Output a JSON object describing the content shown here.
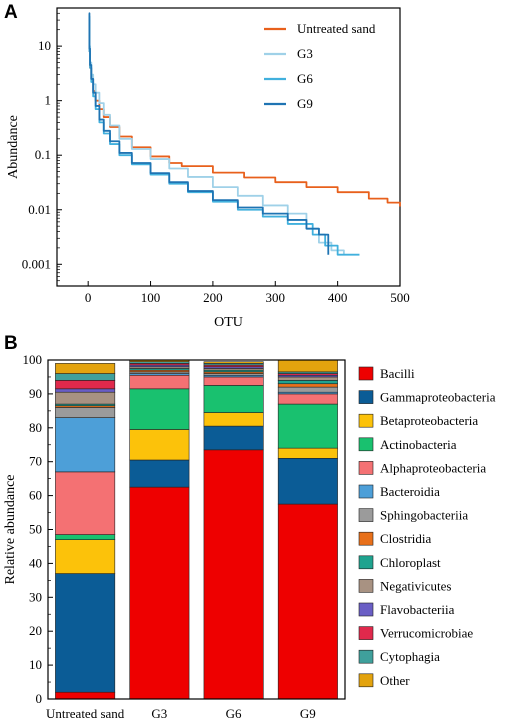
{
  "chart_data": [
    {
      "panel": "A",
      "type": "line",
      "xlabel": "OTU",
      "ylabel": "Abundance",
      "xlim": [
        -50,
        500
      ],
      "ylim": [
        0.0004,
        50
      ],
      "yscale": "log",
      "xticks": [
        0,
        100,
        200,
        300,
        400,
        500
      ],
      "yticks": [
        0.001,
        0.01,
        0.1,
        1,
        10
      ],
      "ytick_labels": [
        "0.001",
        "0.01",
        "0.1",
        "1",
        "10"
      ],
      "legend_position": "top-right",
      "series": [
        {
          "name": "Untreated sand",
          "color": "#e8601c",
          "x": [
            1,
            2,
            3,
            5,
            8,
            12,
            18,
            25,
            35,
            50,
            70,
            100,
            130,
            150,
            200,
            250,
            300,
            350,
            400,
            450,
            480,
            500
          ],
          "y": [
            30,
            8,
            4,
            2.5,
            1.5,
            1.0,
            0.7,
            0.5,
            0.33,
            0.22,
            0.14,
            0.095,
            0.072,
            0.063,
            0.048,
            0.039,
            0.032,
            0.026,
            0.021,
            0.016,
            0.0135,
            0.0115
          ]
        },
        {
          "name": "G3",
          "color": "#9fd1e8",
          "x": [
            1,
            2,
            3,
            5,
            8,
            12,
            18,
            25,
            35,
            50,
            70,
            100,
            130,
            160,
            200,
            240,
            280,
            320,
            350,
            370,
            390,
            410
          ],
          "y": [
            30,
            10,
            5,
            3,
            2,
            1.4,
            0.9,
            0.55,
            0.35,
            0.2,
            0.13,
            0.085,
            0.057,
            0.04,
            0.026,
            0.018,
            0.012,
            0.0085,
            0.0045,
            0.0025,
            0.0018,
            0.0015
          ]
        },
        {
          "name": "G6",
          "color": "#41b0dd",
          "x": [
            1,
            2,
            3,
            5,
            8,
            12,
            18,
            25,
            35,
            50,
            70,
            100,
            130,
            160,
            200,
            240,
            280,
            320,
            360,
            380,
            400,
            435
          ],
          "y": [
            35,
            8,
            4,
            2.2,
            1.2,
            0.7,
            0.4,
            0.25,
            0.16,
            0.1,
            0.068,
            0.044,
            0.03,
            0.021,
            0.014,
            0.01,
            0.0075,
            0.0055,
            0.0035,
            0.0022,
            0.0015,
            0.0015
          ]
        },
        {
          "name": "G9",
          "color": "#1f74b3",
          "x": [
            1,
            2,
            3,
            5,
            8,
            12,
            18,
            25,
            35,
            50,
            70,
            100,
            130,
            160,
            200,
            240,
            280,
            320,
            350,
            370,
            385
          ],
          "y": [
            40,
            9,
            4.5,
            2.5,
            1.4,
            0.8,
            0.45,
            0.28,
            0.18,
            0.11,
            0.072,
            0.047,
            0.032,
            0.022,
            0.015,
            0.011,
            0.0085,
            0.0065,
            0.0045,
            0.0035,
            0.0015
          ]
        }
      ]
    },
    {
      "panel": "B",
      "type": "bar",
      "stacked": true,
      "ylabel": "Relative abundance",
      "ylim": [
        0,
        100
      ],
      "yticks": [
        0,
        10,
        20,
        30,
        40,
        50,
        60,
        70,
        80,
        90,
        100
      ],
      "categories": [
        "Untreated sand",
        "G3",
        "G6",
        "G9"
      ],
      "legend_position": "right",
      "series": [
        {
          "name": "Bacilli",
          "color": "#ee0000",
          "values": [
            2,
            62.5,
            73.5,
            57.5
          ]
        },
        {
          "name": "Gammaproteobacteria",
          "color": "#0b5c96",
          "values": [
            35,
            8,
            7,
            13.5
          ]
        },
        {
          "name": "Betaproteobacteria",
          "color": "#fcc20a",
          "values": [
            10,
            9,
            4,
            3
          ]
        },
        {
          "name": "Actinobacteria",
          "color": "#19c16f",
          "values": [
            1.5,
            12,
            8,
            13
          ]
        },
        {
          "name": "Alphaproteobacteria",
          "color": "#f47173",
          "values": [
            18.5,
            4,
            2.5,
            3
          ]
        },
        {
          "name": "Bacteroidia",
          "color": "#4d9fd8",
          "values": [
            16,
            0.5,
            0.5,
            0.5
          ]
        },
        {
          "name": "Sphingobacteriia",
          "color": "#9b9b9b",
          "values": [
            3,
            0.5,
            0.5,
            1.5
          ]
        },
        {
          "name": "Clostridia",
          "color": "#e8701a",
          "values": [
            0.5,
            0.5,
            0.5,
            1
          ]
        },
        {
          "name": "Chloroplast",
          "color": "#1fa38f",
          "values": [
            0.5,
            0.5,
            0.5,
            1
          ]
        },
        {
          "name": "Negativicutes",
          "color": "#a89282",
          "values": [
            3.5,
            0.5,
            0.5,
            1
          ]
        },
        {
          "name": "Flavobacteriia",
          "color": "#6a5ec5",
          "values": [
            1,
            0.5,
            0.5,
            0.5
          ]
        },
        {
          "name": "Verrucomicrobiae",
          "color": "#e0294c",
          "values": [
            2.5,
            0.5,
            0.5,
            0.5
          ]
        },
        {
          "name": "Cytophagia",
          "color": "#3fa09c",
          "values": [
            2,
            0.5,
            0.5,
            0.5
          ]
        },
        {
          "name": "Other",
          "color": "#e3a30e",
          "values": [
            3,
            0.5,
            0.5,
            3.5
          ]
        }
      ]
    }
  ]
}
